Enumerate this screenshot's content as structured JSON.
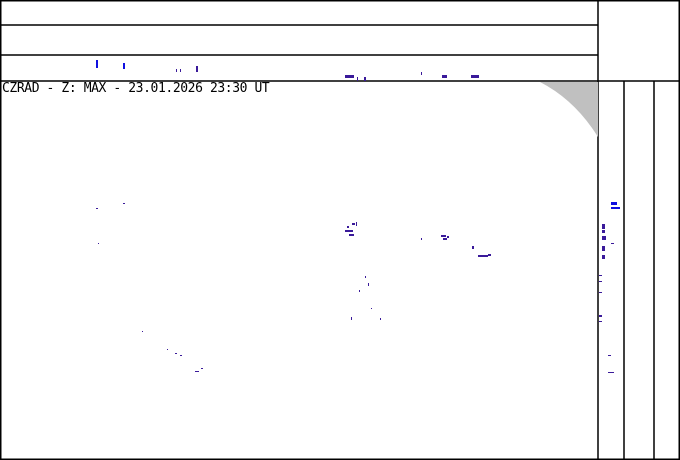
{
  "title": "CZRAD - Z: MAX - 23.01.2026 23:30 UT",
  "colors": {
    "echo": "#3a1a9a",
    "echo_bright": "#1010e0",
    "out_of_range": "#c0c0c0",
    "border": "#000000"
  }
}
